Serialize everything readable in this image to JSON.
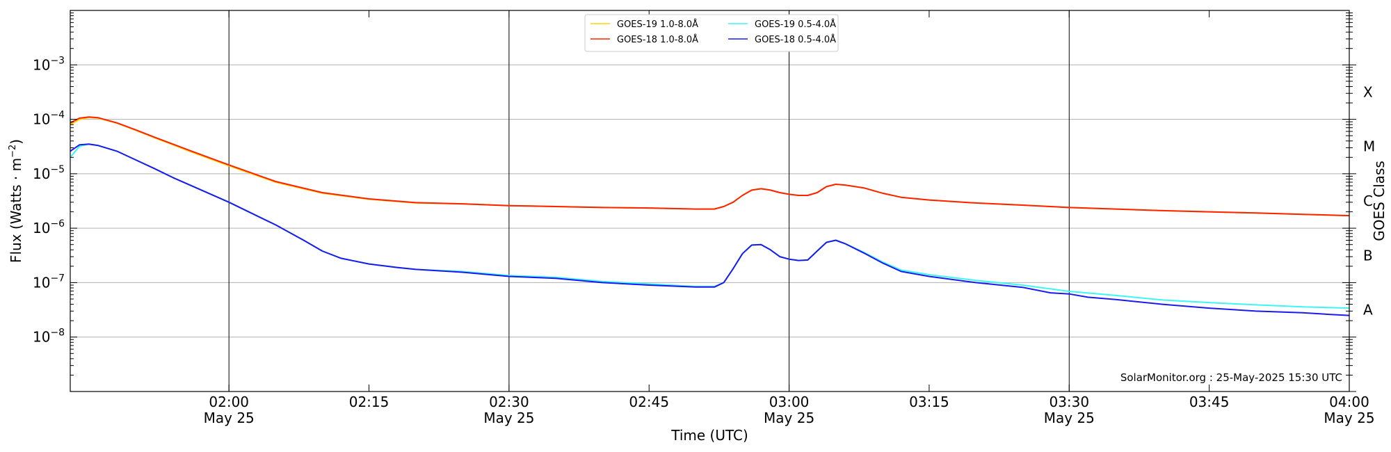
{
  "chart_data": {
    "type": "line",
    "xlabel": "Time (UTC)",
    "ylabel": "Flux (Watts · m",
    "ylabel_sup": "−2",
    "ylabel_close": ")",
    "right_label": "GOES Class",
    "y_scale": "log",
    "x_range_minutes_utc": [
      1.7,
      4.0
    ],
    "xlim": [
      "01:43",
      "04:00"
    ],
    "ylim": [
      1e-09,
      0.01
    ],
    "grid": "horizontal at each decade",
    "legend_placement": "top-center",
    "watermark": "SolarMonitor.org : 25-May-2025 15:30 UTC",
    "x_ticks": [
      {
        "t": "02:00",
        "label": "02:00",
        "sub": "May 25",
        "vline": true
      },
      {
        "t": "02:15",
        "label": "02:15",
        "sub": "",
        "vline": false
      },
      {
        "t": "02:30",
        "label": "02:30",
        "sub": "May 25",
        "vline": true
      },
      {
        "t": "02:45",
        "label": "02:45",
        "sub": "",
        "vline": false
      },
      {
        "t": "03:00",
        "label": "03:00",
        "sub": "May 25",
        "vline": true
      },
      {
        "t": "03:15",
        "label": "03:15",
        "sub": "",
        "vline": false
      },
      {
        "t": "03:30",
        "label": "03:30",
        "sub": "May 25",
        "vline": true
      },
      {
        "t": "03:45",
        "label": "03:45",
        "sub": "",
        "vline": false
      },
      {
        "t": "04:00",
        "label": "04:00",
        "sub": "May 25",
        "vline": false
      }
    ],
    "y_ticks": [
      {
        "exp": -8,
        "label": "10",
        "sup": "−8"
      },
      {
        "exp": -7,
        "label": "10",
        "sup": "−7"
      },
      {
        "exp": -6,
        "label": "10",
        "sup": "−6"
      },
      {
        "exp": -5,
        "label": "10",
        "sup": "−5"
      },
      {
        "exp": -4,
        "label": "10",
        "sup": "−4"
      },
      {
        "exp": -3,
        "label": "10",
        "sup": "−3"
      }
    ],
    "classes": [
      {
        "label": "A",
        "exp": -8
      },
      {
        "label": "B",
        "exp": -7
      },
      {
        "label": "C",
        "exp": -6
      },
      {
        "label": "M",
        "exp": -5
      },
      {
        "label": "X",
        "exp": -4
      }
    ],
    "series": [
      {
        "name": "GOES-19 1.0-8.0Å",
        "color": "#ffd500",
        "points": [
          [
            "01:43",
            8e-05
          ],
          [
            "01:44",
            0.0001
          ],
          [
            "01:45",
            0.000108
          ],
          [
            "01:46",
            0.000105
          ],
          [
            "01:48",
            8.5e-05
          ],
          [
            "01:50",
            6.3e-05
          ],
          [
            "01:52",
            4.6e-05
          ],
          [
            "01:54",
            3.4e-05
          ],
          [
            "01:56",
            2.5e-05
          ],
          [
            "02:00",
            1.4e-05
          ],
          [
            "02:05",
            7e-06
          ],
          [
            "02:10",
            4.4e-06
          ],
          [
            "02:15",
            3.4e-06
          ],
          [
            "02:20",
            2.9e-06
          ],
          [
            "02:25",
            2.8e-06
          ],
          [
            "02:30",
            2.6e-06
          ],
          [
            "02:35",
            2.5e-06
          ],
          [
            "02:40",
            2.4e-06
          ],
          [
            "02:45",
            2.35e-06
          ],
          [
            "02:50",
            2.25e-06
          ],
          [
            "02:52",
            2.25e-06
          ],
          [
            "02:53",
            2.5e-06
          ],
          [
            "02:54",
            3e-06
          ],
          [
            "02:55",
            4e-06
          ],
          [
            "02:56",
            5e-06
          ],
          [
            "02:57",
            5.3e-06
          ],
          [
            "02:58",
            5e-06
          ],
          [
            "02:59",
            4.5e-06
          ],
          [
            "03:00",
            4.2e-06
          ],
          [
            "03:01",
            4e-06
          ],
          [
            "03:02",
            4e-06
          ],
          [
            "03:03",
            4.5e-06
          ],
          [
            "03:04",
            5.8e-06
          ],
          [
            "03:05",
            6.4e-06
          ],
          [
            "03:06",
            6.2e-06
          ],
          [
            "03:08",
            5.5e-06
          ],
          [
            "03:10",
            4.4e-06
          ],
          [
            "03:12",
            3.7e-06
          ],
          [
            "03:15",
            3.3e-06
          ],
          [
            "03:20",
            2.9e-06
          ],
          [
            "03:25",
            2.65e-06
          ],
          [
            "03:30",
            2.4e-06
          ],
          [
            "03:35",
            2.25e-06
          ],
          [
            "03:40",
            2.1e-06
          ],
          [
            "03:45",
            2e-06
          ],
          [
            "03:50",
            1.9e-06
          ],
          [
            "03:55",
            1.8e-06
          ],
          [
            "04:00",
            1.7e-06
          ]
        ]
      },
      {
        "name": "GOES-19 0.5-4.0Å",
        "color": "#3df5f5",
        "points": [
          [
            "01:43",
            2e-05
          ],
          [
            "01:44",
            3.2e-05
          ],
          [
            "01:45",
            3.5e-05
          ],
          [
            "01:46",
            3.3e-05
          ],
          [
            "01:48",
            2.6e-05
          ],
          [
            "01:50",
            1.8e-05
          ],
          [
            "01:52",
            1.25e-05
          ],
          [
            "01:54",
            8.5e-06
          ],
          [
            "01:56",
            6e-06
          ],
          [
            "02:00",
            3e-06
          ],
          [
            "02:05",
            1.15e-06
          ],
          [
            "02:08",
            6e-07
          ],
          [
            "02:10",
            3.8e-07
          ],
          [
            "02:12",
            2.8e-07
          ],
          [
            "02:15",
            2.2e-07
          ],
          [
            "02:18",
            1.9e-07
          ],
          [
            "02:20",
            1.75e-07
          ],
          [
            "02:25",
            1.6e-07
          ],
          [
            "02:30",
            1.35e-07
          ],
          [
            "02:35",
            1.25e-07
          ],
          [
            "02:40",
            1.05e-07
          ],
          [
            "02:45",
            9.5e-08
          ],
          [
            "02:50",
            8.5e-08
          ],
          [
            "02:52",
            8.5e-08
          ],
          [
            "02:53",
            1e-07
          ],
          [
            "02:54",
            1.8e-07
          ],
          [
            "02:55",
            3.4e-07
          ],
          [
            "02:56",
            4.9e-07
          ],
          [
            "02:57",
            5e-07
          ],
          [
            "02:58",
            4e-07
          ],
          [
            "02:59",
            3e-07
          ],
          [
            "03:00",
            2.7e-07
          ],
          [
            "03:01",
            2.55e-07
          ],
          [
            "03:02",
            2.6e-07
          ],
          [
            "03:03",
            3.8e-07
          ],
          [
            "03:04",
            5.5e-07
          ],
          [
            "03:05",
            6e-07
          ],
          [
            "03:06",
            5.2e-07
          ],
          [
            "03:08",
            3.6e-07
          ],
          [
            "03:10",
            2.4e-07
          ],
          [
            "03:12",
            1.7e-07
          ],
          [
            "03:15",
            1.4e-07
          ],
          [
            "03:20",
            1.1e-07
          ],
          [
            "03:25",
            9e-08
          ],
          [
            "03:30",
            6.9e-08
          ],
          [
            "03:35",
            5.8e-08
          ],
          [
            "03:40",
            4.8e-08
          ],
          [
            "03:45",
            4.3e-08
          ],
          [
            "03:50",
            3.9e-08
          ],
          [
            "03:55",
            3.6e-08
          ],
          [
            "04:00",
            3.4e-08
          ]
        ]
      },
      {
        "name": "GOES-18 1.0-8.0Å",
        "color": "#ff2200",
        "points": [
          [
            "01:43",
            8.6e-05
          ],
          [
            "01:44",
            0.000105
          ],
          [
            "01:45",
            0.00011
          ],
          [
            "01:46",
            0.000107
          ],
          [
            "01:48",
            8.6e-05
          ],
          [
            "01:50",
            6.4e-05
          ],
          [
            "01:52",
            4.7e-05
          ],
          [
            "01:54",
            3.5e-05
          ],
          [
            "01:56",
            2.6e-05
          ],
          [
            "02:00",
            1.45e-05
          ],
          [
            "02:05",
            7.2e-06
          ],
          [
            "02:10",
            4.5e-06
          ],
          [
            "02:15",
            3.45e-06
          ],
          [
            "02:20",
            2.95e-06
          ],
          [
            "02:25",
            2.8e-06
          ],
          [
            "02:30",
            2.6e-06
          ],
          [
            "02:35",
            2.5e-06
          ],
          [
            "02:40",
            2.4e-06
          ],
          [
            "02:45",
            2.35e-06
          ],
          [
            "02:50",
            2.25e-06
          ],
          [
            "02:52",
            2.25e-06
          ],
          [
            "02:53",
            2.5e-06
          ],
          [
            "02:54",
            3e-06
          ],
          [
            "02:55",
            4e-06
          ],
          [
            "02:56",
            5e-06
          ],
          [
            "02:57",
            5.3e-06
          ],
          [
            "02:58",
            5e-06
          ],
          [
            "02:59",
            4.5e-06
          ],
          [
            "03:00",
            4.2e-06
          ],
          [
            "03:01",
            4e-06
          ],
          [
            "03:02",
            4e-06
          ],
          [
            "03:03",
            4.5e-06
          ],
          [
            "03:04",
            5.8e-06
          ],
          [
            "03:05",
            6.4e-06
          ],
          [
            "03:06",
            6.2e-06
          ],
          [
            "03:08",
            5.5e-06
          ],
          [
            "03:10",
            4.4e-06
          ],
          [
            "03:12",
            3.7e-06
          ],
          [
            "03:15",
            3.3e-06
          ],
          [
            "03:20",
            2.9e-06
          ],
          [
            "03:25",
            2.65e-06
          ],
          [
            "03:30",
            2.4e-06
          ],
          [
            "03:35",
            2.25e-06
          ],
          [
            "03:40",
            2.1e-06
          ],
          [
            "03:45",
            2e-06
          ],
          [
            "03:50",
            1.9e-06
          ],
          [
            "03:55",
            1.8e-06
          ],
          [
            "04:00",
            1.7e-06
          ]
        ]
      },
      {
        "name": "GOES-18 0.5-4.0Å",
        "color": "#1a1aee",
        "points": [
          [
            "01:43",
            2.6e-05
          ],
          [
            "01:44",
            3.4e-05
          ],
          [
            "01:45",
            3.5e-05
          ],
          [
            "01:46",
            3.3e-05
          ],
          [
            "01:48",
            2.6e-05
          ],
          [
            "01:50",
            1.8e-05
          ],
          [
            "01:52",
            1.25e-05
          ],
          [
            "01:54",
            8.5e-06
          ],
          [
            "01:56",
            6e-06
          ],
          [
            "02:00",
            3e-06
          ],
          [
            "02:05",
            1.15e-06
          ],
          [
            "02:08",
            6e-07
          ],
          [
            "02:10",
            3.8e-07
          ],
          [
            "02:12",
            2.8e-07
          ],
          [
            "02:15",
            2.2e-07
          ],
          [
            "02:18",
            1.9e-07
          ],
          [
            "02:20",
            1.75e-07
          ],
          [
            "02:25",
            1.55e-07
          ],
          [
            "02:30",
            1.3e-07
          ],
          [
            "02:35",
            1.2e-07
          ],
          [
            "02:40",
            1e-07
          ],
          [
            "02:45",
            9e-08
          ],
          [
            "02:50",
            8.3e-08
          ],
          [
            "02:52",
            8.3e-08
          ],
          [
            "02:53",
            1e-07
          ],
          [
            "02:54",
            1.8e-07
          ],
          [
            "02:55",
            3.4e-07
          ],
          [
            "02:56",
            4.9e-07
          ],
          [
            "02:57",
            5e-07
          ],
          [
            "02:58",
            4e-07
          ],
          [
            "02:59",
            3e-07
          ],
          [
            "03:00",
            2.7e-07
          ],
          [
            "03:01",
            2.55e-07
          ],
          [
            "03:02",
            2.6e-07
          ],
          [
            "03:03",
            3.8e-07
          ],
          [
            "03:04",
            5.5e-07
          ],
          [
            "03:05",
            6e-07
          ],
          [
            "03:06",
            5.2e-07
          ],
          [
            "03:08",
            3.5e-07
          ],
          [
            "03:10",
            2.3e-07
          ],
          [
            "03:12",
            1.6e-07
          ],
          [
            "03:15",
            1.3e-07
          ],
          [
            "03:20",
            1e-07
          ],
          [
            "03:25",
            8.2e-08
          ],
          [
            "03:28",
            6.5e-08
          ],
          [
            "03:30",
            6.2e-08
          ],
          [
            "03:32",
            5.4e-08
          ],
          [
            "03:35",
            4.9e-08
          ],
          [
            "03:40",
            4e-08
          ],
          [
            "03:45",
            3.4e-08
          ],
          [
            "03:50",
            3e-08
          ],
          [
            "03:55",
            2.8e-08
          ],
          [
            "03:58",
            2.6e-08
          ],
          [
            "04:00",
            2.5e-08
          ]
        ]
      }
    ],
    "legend_order": [
      {
        "series": 0,
        "col": 0,
        "row": 0
      },
      {
        "series": 2,
        "col": 0,
        "row": 1
      },
      {
        "series": 1,
        "col": 1,
        "row": 0
      },
      {
        "series": 3,
        "col": 1,
        "row": 1
      }
    ]
  }
}
